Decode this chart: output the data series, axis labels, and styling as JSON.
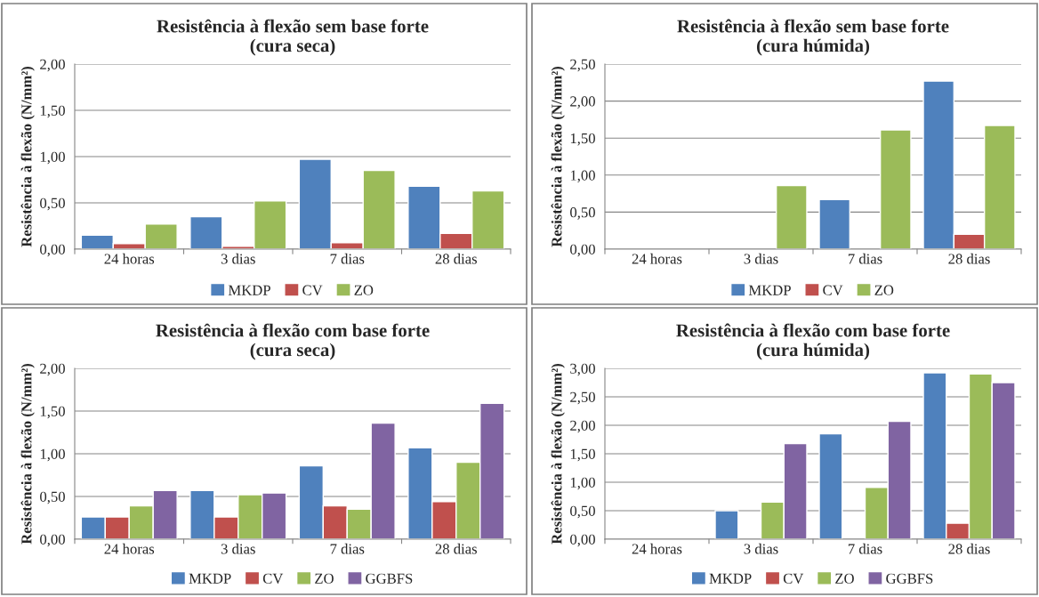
{
  "chart_data": [
    {
      "type": "bar",
      "title": "Resistência à flexão sem base forte\n(cura seca)",
      "ylabel": "Resistência à flexão (N/mm²)",
      "categories": [
        "24 horas",
        "3 dias",
        "7 dias",
        "28 dias"
      ],
      "series": [
        {
          "name": "MKDP",
          "color": "#4f81bd",
          "values": [
            0.15,
            0.35,
            0.97,
            0.68
          ]
        },
        {
          "name": "CV",
          "color": "#c0504d",
          "values": [
            0.06,
            0.03,
            0.07,
            0.17
          ]
        },
        {
          "name": "ZO",
          "color": "#9bbb59",
          "values": [
            0.27,
            0.52,
            0.85,
            0.63
          ]
        }
      ],
      "ylim": [
        0,
        2
      ],
      "yticks": [
        {
          "value": 0,
          "label": "0,00"
        },
        {
          "value": 0.5,
          "label": "0,50"
        },
        {
          "value": 1,
          "label": "1,00"
        },
        {
          "value": 1.5,
          "label": "1,50"
        },
        {
          "value": 2,
          "label": "2,00"
        }
      ],
      "grid": "y",
      "legend": "bottom"
    },
    {
      "type": "bar",
      "title": "Resistência à flexão sem base forte\n(cura húmida)",
      "ylabel": "Resistência à flexão (N/mm²)",
      "categories": [
        "24 horas",
        "3 dias",
        "7 dias",
        "28 dias"
      ],
      "series": [
        {
          "name": "MKDP",
          "color": "#4f81bd",
          "values": [
            null,
            null,
            0.67,
            2.27
          ]
        },
        {
          "name": "CV",
          "color": "#c0504d",
          "values": [
            null,
            null,
            null,
            0.2
          ]
        },
        {
          "name": "ZO",
          "color": "#9bbb59",
          "values": [
            null,
            0.86,
            1.61,
            1.67
          ]
        }
      ],
      "ylim": [
        0,
        2.5
      ],
      "yticks": [
        {
          "value": 0,
          "label": "0,00"
        },
        {
          "value": 0.5,
          "label": "0,50"
        },
        {
          "value": 1,
          "label": "1,00"
        },
        {
          "value": 1.5,
          "label": "1,50"
        },
        {
          "value": 2,
          "label": "2,00"
        },
        {
          "value": 2.5,
          "label": "2,50"
        }
      ],
      "grid": "y",
      "legend": "bottom"
    },
    {
      "type": "bar",
      "title": "Resistência à flexão com base forte\n(cura seca)",
      "ylabel": "Resistência à flexão (N/mm²)",
      "categories": [
        "24 horas",
        "3 dias",
        "7 dias",
        "28 dias"
      ],
      "series": [
        {
          "name": "MKDP",
          "color": "#4f81bd",
          "values": [
            0.26,
            0.57,
            0.86,
            1.07
          ]
        },
        {
          "name": "CV",
          "color": "#c0504d",
          "values": [
            0.26,
            0.26,
            0.39,
            0.44
          ]
        },
        {
          "name": "ZO",
          "color": "#9bbb59",
          "values": [
            0.39,
            0.52,
            0.35,
            0.9
          ]
        },
        {
          "name": "GGBFS",
          "color": "#8064a2",
          "values": [
            0.57,
            0.54,
            1.36,
            1.59
          ]
        }
      ],
      "ylim": [
        0,
        2
      ],
      "yticks": [
        {
          "value": 0,
          "label": "0,00"
        },
        {
          "value": 0.5,
          "label": "0,50"
        },
        {
          "value": 1,
          "label": "1,00"
        },
        {
          "value": 1.5,
          "label": "1,50"
        },
        {
          "value": 2,
          "label": "2,00"
        }
      ],
      "grid": "y",
      "legend": "bottom"
    },
    {
      "type": "bar",
      "title": "Resistência à flexão com base forte\n(cura húmida)",
      "ylabel": "Resistência à flexão (N/mm²)",
      "categories": [
        "24 horas",
        "3 dias",
        "7 dias",
        "28 dias"
      ],
      "series": [
        {
          "name": "MKDP",
          "color": "#4f81bd",
          "values": [
            null,
            0.5,
            1.85,
            2.92
          ]
        },
        {
          "name": "CV",
          "color": "#c0504d",
          "values": [
            null,
            null,
            null,
            0.28
          ]
        },
        {
          "name": "ZO",
          "color": "#9bbb59",
          "values": [
            null,
            0.65,
            0.91,
            2.9
          ]
        },
        {
          "name": "GGBFS",
          "color": "#8064a2",
          "values": [
            null,
            1.68,
            2.07,
            2.75
          ]
        }
      ],
      "ylim": [
        0,
        3
      ],
      "yticks": [
        {
          "value": 0,
          "label": "0,00"
        },
        {
          "value": 0.5,
          "label": "0,50"
        },
        {
          "value": 1,
          "label": "1,00"
        },
        {
          "value": 1.5,
          "label": "1,50"
        },
        {
          "value": 2,
          "label": "2,00"
        },
        {
          "value": 2.5,
          "label": "2,50"
        },
        {
          "value": 3,
          "label": "3,00"
        }
      ],
      "grid": "y",
      "legend": "bottom"
    }
  ]
}
